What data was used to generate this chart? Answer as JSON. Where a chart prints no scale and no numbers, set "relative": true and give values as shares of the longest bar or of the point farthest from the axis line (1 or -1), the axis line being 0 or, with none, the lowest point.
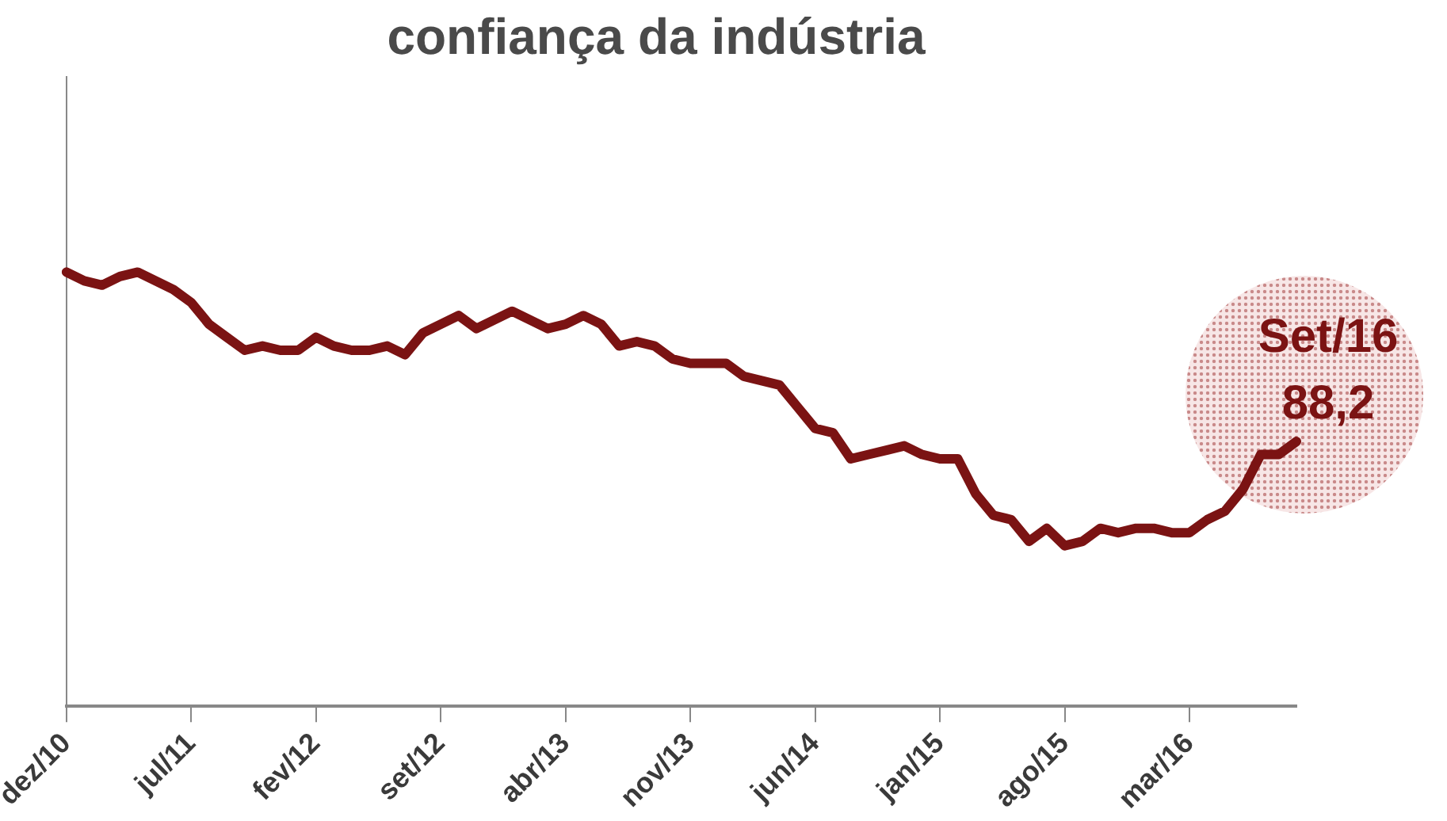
{
  "chart_data": {
    "type": "line",
    "title": "confiança da indústria",
    "categories": [
      "dez/10",
      null,
      null,
      null,
      null,
      null,
      null,
      "jul/11",
      null,
      null,
      null,
      null,
      null,
      null,
      "fev/12",
      null,
      null,
      null,
      null,
      null,
      null,
      "set/12",
      null,
      null,
      null,
      null,
      null,
      null,
      "abr/13",
      null,
      null,
      null,
      null,
      null,
      null,
      "nov/13",
      null,
      null,
      null,
      null,
      null,
      null,
      "jun/14",
      null,
      null,
      null,
      null,
      null,
      null,
      "jan/15",
      null,
      null,
      null,
      null,
      null,
      null,
      "ago/15",
      null,
      null,
      null,
      null,
      null,
      null,
      "mar/16",
      null,
      null,
      null,
      null,
      null,
      null
    ],
    "relative": true,
    "series": [
      {
        "color": "#7b1313",
        "values": [
          1.0,
          0.98,
          0.97,
          0.99,
          1.0,
          0.98,
          0.96,
          0.93,
          0.88,
          0.85,
          0.82,
          0.83,
          0.82,
          0.82,
          0.85,
          0.83,
          0.82,
          0.82,
          0.83,
          0.81,
          0.86,
          0.88,
          0.9,
          0.87,
          0.89,
          0.91,
          0.89,
          0.87,
          0.88,
          0.9,
          0.88,
          0.83,
          0.84,
          0.83,
          0.8,
          0.79,
          0.79,
          0.79,
          0.76,
          0.75,
          0.74,
          0.69,
          0.64,
          0.63,
          0.57,
          0.58,
          0.59,
          0.6,
          0.58,
          0.57,
          0.57,
          0.49,
          0.44,
          0.43,
          0.38,
          0.41,
          0.37,
          0.38,
          0.41,
          0.4,
          0.41,
          0.41,
          0.4,
          0.4,
          0.43,
          0.45,
          0.5,
          0.58,
          0.58,
          0.61
        ]
      }
    ],
    "annotations": [
      "Set/16",
      "88,2"
    ],
    "tick_labels": "x",
    "grid": false,
    "legend": false,
    "marker": "none",
    "line_style": "solid"
  }
}
